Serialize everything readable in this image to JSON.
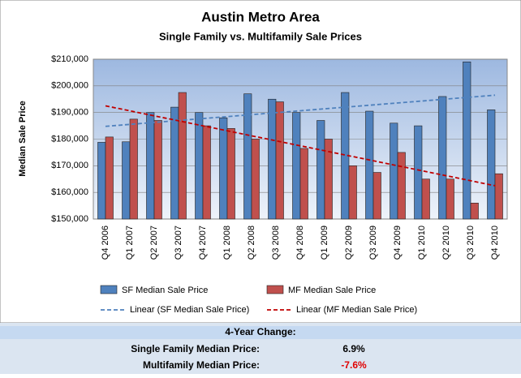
{
  "chart_data": {
    "type": "bar",
    "title": "Austin Metro Area",
    "subtitle": "Single Family vs. Multifamily Sale Prices",
    "y_label": "Median Sale Price",
    "categories": [
      "Q4 2006",
      "Q1 2007",
      "Q2 2007",
      "Q3 2007",
      "Q4 2007",
      "Q1 2008",
      "Q2 2008",
      "Q3 2008",
      "Q4 2008",
      "Q1 2009",
      "Q2 2009",
      "Q3 2009",
      "Q4 2009",
      "Q1 2010",
      "Q2 2010",
      "Q3 2010",
      "Q4 2010"
    ],
    "series": [
      {
        "name": "SF Median Sale Price",
        "color": "#4f81bd",
        "values": [
          178800,
          179000,
          190000,
          192000,
          190000,
          188000,
          197000,
          195000,
          190000,
          187000,
          197500,
          190500,
          186000,
          185000,
          196000,
          209000,
          191000
        ]
      },
      {
        "name": "MF Median Sale Price",
        "color": "#c0504d",
        "values": [
          180800,
          187500,
          187000,
          197500,
          185000,
          184000,
          180000,
          194000,
          176500,
          180000,
          170000,
          167500,
          175000,
          165000,
          165000,
          156000,
          167000
        ]
      }
    ],
    "trendlines": [
      {
        "name": "Linear (SF Median Sale Price)",
        "color": "#4f81bd",
        "values": [
          184800,
          196500
        ]
      },
      {
        "name": "Linear (MF Median Sale Price)",
        "color": "#c00000",
        "values": [
          192500,
          162500
        ]
      }
    ],
    "ylim": [
      150000,
      210000
    ],
    "yticks": [
      {
        "value": 150000,
        "label": "$150,000"
      },
      {
        "value": 160000,
        "label": "$160,000"
      },
      {
        "value": 170000,
        "label": "$170,000"
      },
      {
        "value": 180000,
        "label": "$180,000"
      },
      {
        "value": 190000,
        "label": "$190,000"
      },
      {
        "value": 200000,
        "label": "$200,000"
      },
      {
        "value": 210000,
        "label": "$210,000"
      }
    ],
    "grid": true
  },
  "table": {
    "title": "4-Year Change:",
    "rows": [
      [
        "Single Family Median Price:",
        "6.9%"
      ],
      [
        "Multifamily Median Price:",
        "-7.6%"
      ]
    ]
  }
}
